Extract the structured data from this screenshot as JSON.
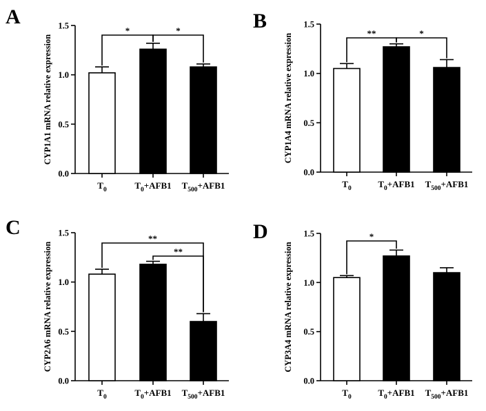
{
  "chart_data": [
    {
      "type": "bar",
      "panel": "A",
      "ylabel": "CYP1A1 mRNA relative expression",
      "ylim": [
        0,
        1.5
      ],
      "yticks": [
        "0.0",
        "0.5",
        "1.0",
        "1.5"
      ],
      "categories": [
        {
          "base": "T",
          "sub": "0",
          "suffix": ""
        },
        {
          "base": "T",
          "sub": "0",
          "suffix": "+AFB1"
        },
        {
          "base": "T",
          "sub": "500",
          "suffix": "+AFB1"
        }
      ],
      "values": [
        1.02,
        1.26,
        1.08
      ],
      "errors": [
        0.06,
        0.06,
        0.03
      ],
      "bar_colors": [
        "#ffffff",
        "#000000",
        "#000000"
      ],
      "significance": [
        {
          "from": 0,
          "to": 1,
          "label": "*"
        },
        {
          "from": 1,
          "to": 2,
          "label": "*"
        }
      ]
    },
    {
      "type": "bar",
      "panel": "B",
      "ylabel": "CYP1A4 mRNA relative expression",
      "ylim": [
        0,
        1.5
      ],
      "yticks": [
        "0.0",
        "0.5",
        "1.0",
        "1.5"
      ],
      "categories": [
        {
          "base": "T",
          "sub": "0",
          "suffix": ""
        },
        {
          "base": "T",
          "sub": "0",
          "suffix": "+AFB1"
        },
        {
          "base": "T",
          "sub": "500",
          "suffix": "+AFB1"
        }
      ],
      "values": [
        1.05,
        1.27,
        1.06
      ],
      "errors": [
        0.05,
        0.03,
        0.08
      ],
      "bar_colors": [
        "#ffffff",
        "#000000",
        "#000000"
      ],
      "significance": [
        {
          "from": 0,
          "to": 1,
          "label": "**"
        },
        {
          "from": 1,
          "to": 2,
          "label": "*"
        }
      ]
    },
    {
      "type": "bar",
      "panel": "C",
      "ylabel": "CYP2A6 mRNA relative expression",
      "ylim": [
        0,
        1.5
      ],
      "yticks": [
        "0.0",
        "0.5",
        "1.0",
        "1.5"
      ],
      "categories": [
        {
          "base": "T",
          "sub": "0",
          "suffix": ""
        },
        {
          "base": "T",
          "sub": "0",
          "suffix": "+AFB1"
        },
        {
          "base": "T",
          "sub": "500",
          "suffix": "+AFB1"
        }
      ],
      "values": [
        1.08,
        1.18,
        0.6
      ],
      "errors": [
        0.05,
        0.03,
        0.08
      ],
      "bar_colors": [
        "#ffffff",
        "#000000",
        "#000000"
      ],
      "significance": [
        {
          "from": 0,
          "to": 2,
          "label": "**"
        },
        {
          "from": 1,
          "to": 2,
          "label": "**"
        }
      ]
    },
    {
      "type": "bar",
      "panel": "D",
      "ylabel": "CYP3A4 mRNA relative expression",
      "ylim": [
        0,
        1.5
      ],
      "yticks": [
        "0.0",
        "0.5",
        "1.0",
        "1.5"
      ],
      "categories": [
        {
          "base": "T",
          "sub": "0",
          "suffix": ""
        },
        {
          "base": "T",
          "sub": "0",
          "suffix": "+AFB1"
        },
        {
          "base": "T",
          "sub": "500",
          "suffix": "+AFB1"
        }
      ],
      "values": [
        1.05,
        1.27,
        1.1
      ],
      "errors": [
        0.02,
        0.06,
        0.05
      ],
      "bar_colors": [
        "#ffffff",
        "#000000",
        "#000000"
      ],
      "significance": [
        {
          "from": 0,
          "to": 1,
          "label": "*"
        }
      ]
    }
  ]
}
